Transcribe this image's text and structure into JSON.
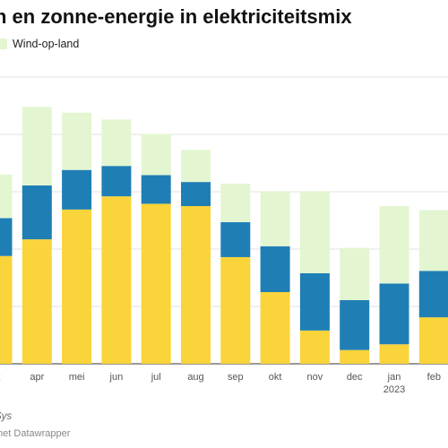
{
  "title": "n en zonne-energie in elektriciteitsmix",
  "source_text": "Sys",
  "credit_text": "met Datawrapper",
  "colors": {
    "solar": "#f9d43a",
    "offshore": "#1f7fb5",
    "onshore": "#e3f6d1",
    "grid": "#e2e2e2",
    "baseline": "#333333"
  },
  "chart_data": {
    "type": "bar",
    "stacked": true,
    "title": "n en zonne-energie in elektriciteitsmix",
    "categories": [
      "rt",
      "apr",
      "mei",
      "jun",
      "jul",
      "aug",
      "sep",
      "okt",
      "nov",
      "dec",
      "jan",
      "feb"
    ],
    "category_sublabels": [
      "",
      "",
      "",
      "",
      "",
      "",
      "",
      "",
      "",
      "",
      "2023",
      ""
    ],
    "series": [
      {
        "key": "solar",
        "name": "",
        "values": [
          18.8,
          21.7,
          26.9,
          29.2,
          27.9,
          27.5,
          18.6,
          12.5,
          5.8,
          2.4,
          3.4,
          8.1
        ]
      },
      {
        "key": "offshore",
        "name": "",
        "values": [
          6.6,
          9.4,
          6.9,
          5.3,
          5.0,
          4.2,
          6.1,
          8.0,
          10.0,
          8.7,
          10.6,
          8.1
        ]
      },
      {
        "key": "onshore",
        "name": "Wind-op-land",
        "values": [
          7.6,
          13.7,
          10.0,
          8.1,
          7.2,
          5.6,
          6.7,
          9.6,
          14.3,
          9.1,
          13.5,
          10.6
        ]
      }
    ],
    "ylim": [
      0,
      50
    ],
    "gridlines": [
      0,
      10,
      20,
      30,
      40,
      50
    ],
    "grid": true,
    "legend_position": "top-left"
  }
}
